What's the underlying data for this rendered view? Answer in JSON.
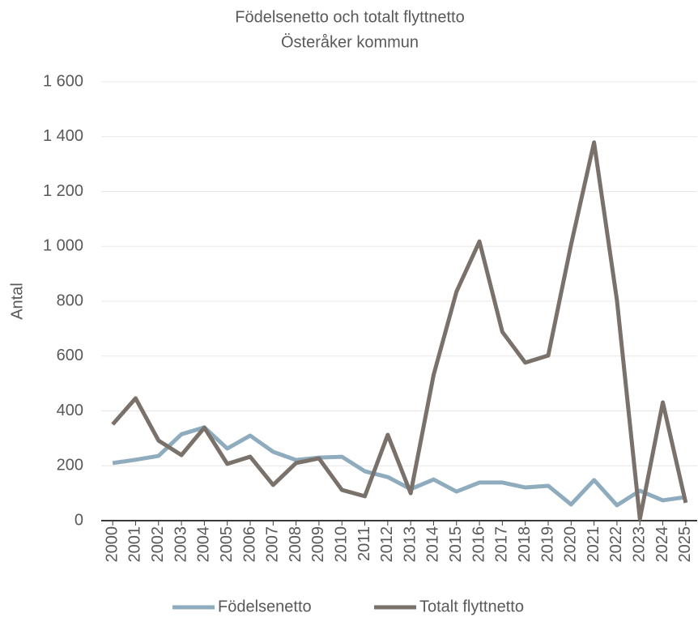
{
  "chart_data": {
    "type": "line",
    "title": "Födelsenetto och totalt flyttnetto",
    "subtitle": "Österåker kommun",
    "y_label": "Antal",
    "categories": [
      "2000",
      "2001",
      "2002",
      "2003",
      "2004",
      "2005",
      "2006",
      "2007",
      "2008",
      "2009",
      "2010",
      "2011",
      "2012",
      "2013",
      "2014",
      "2015",
      "2016",
      "2017",
      "2018",
      "2019",
      "2020",
      "2021",
      "2022",
      "2023",
      "2024",
      "2025"
    ],
    "series": [
      {
        "name": "Födelsenetto",
        "color": "#8eacbd",
        "values": [
          210,
          222,
          236,
          315,
          340,
          263,
          310,
          251,
          221,
          230,
          233,
          180,
          159,
          115,
          150,
          106,
          139,
          139,
          121,
          127,
          59,
          148,
          56,
          109,
          74,
          86
        ]
      },
      {
        "name": "Totalt flyttnetto",
        "color": "#7a716a",
        "values": [
          351,
          446,
          292,
          239,
          339,
          207,
          233,
          130,
          210,
          227,
          112,
          89,
          313,
          100,
          531,
          835,
          1018,
          688,
          576,
          602,
          1007,
          1379,
          803,
          6,
          431,
          65
        ]
      }
    ],
    "ylim": [
      0,
      1600
    ],
    "yticks": [
      0,
      200,
      400,
      600,
      800,
      {
        "value": 1000,
        "label": "1 000"
      },
      {
        "value": 1200,
        "label": "1 200"
      },
      {
        "value": 1400,
        "label": "1 400"
      },
      {
        "value": 1600,
        "label": "1 600"
      }
    ],
    "grid": true,
    "legend": "bottom"
  }
}
